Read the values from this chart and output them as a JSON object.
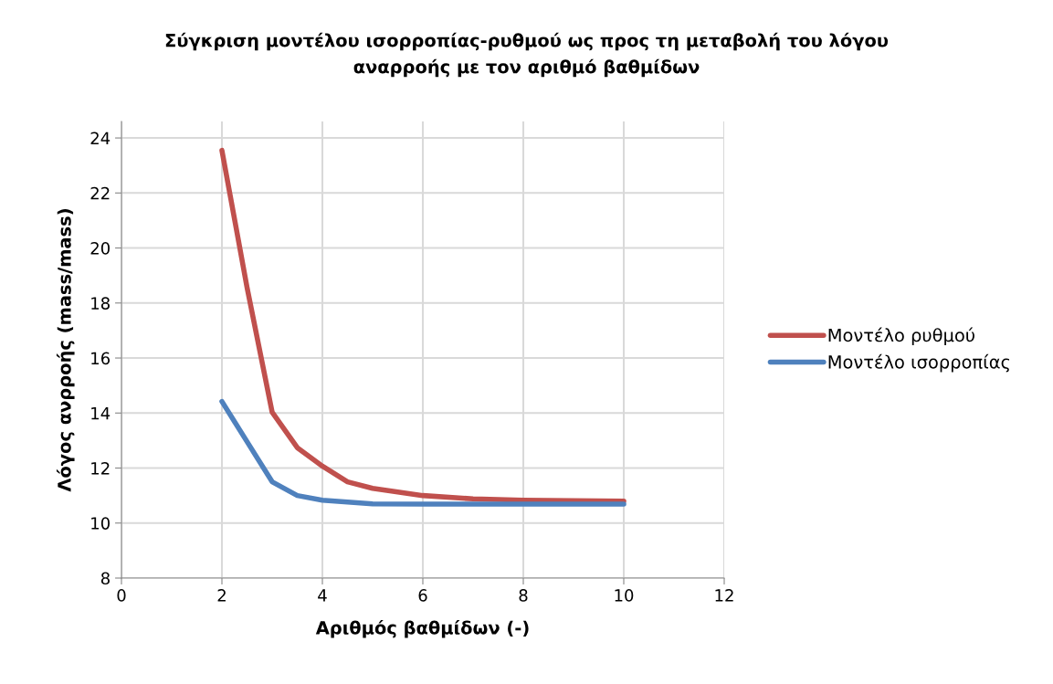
{
  "chart_data": {
    "type": "line",
    "title": "Σύγκριση μοντέλου ισορροπίας-ρυθμού ως προς τη μεταβολή του λόγου\nαναρροής με τον αριθμό βαθμίδων",
    "xlabel": "Αριθμός βαθμίδων (-)",
    "ylabel": "Λόγος ανρροής (mass/mass)",
    "series": [
      {
        "name": "Μοντέλο ρυθμού",
        "color": "#c0504d",
        "x": [
          2,
          2.5,
          3,
          3.5,
          4,
          4.5,
          5,
          6,
          7,
          8,
          9,
          10
        ],
        "values": [
          23.55,
          18.57,
          14.03,
          12.74,
          12.07,
          11.5,
          11.26,
          11.0,
          10.88,
          10.83,
          10.81,
          10.8
        ]
      },
      {
        "name": "Μοντέλο ισορροπίας",
        "color": "#4f81bd",
        "x": [
          2,
          2.5,
          3,
          3.5,
          4,
          5,
          6,
          7,
          8,
          9,
          10
        ],
        "values": [
          14.42,
          12.96,
          11.5,
          11.0,
          10.83,
          10.7,
          10.69,
          10.69,
          10.69,
          10.69,
          10.69
        ]
      }
    ],
    "xlim": [
      0,
      12
    ],
    "xticks": [
      0,
      2,
      4,
      6,
      8,
      10,
      12
    ],
    "ylim": [
      8,
      24.6
    ],
    "yticks": [
      8,
      10,
      12,
      14,
      16,
      18,
      20,
      22,
      24
    ],
    "grid": true,
    "legend": "right",
    "marker": "none",
    "line_style": "solid"
  }
}
